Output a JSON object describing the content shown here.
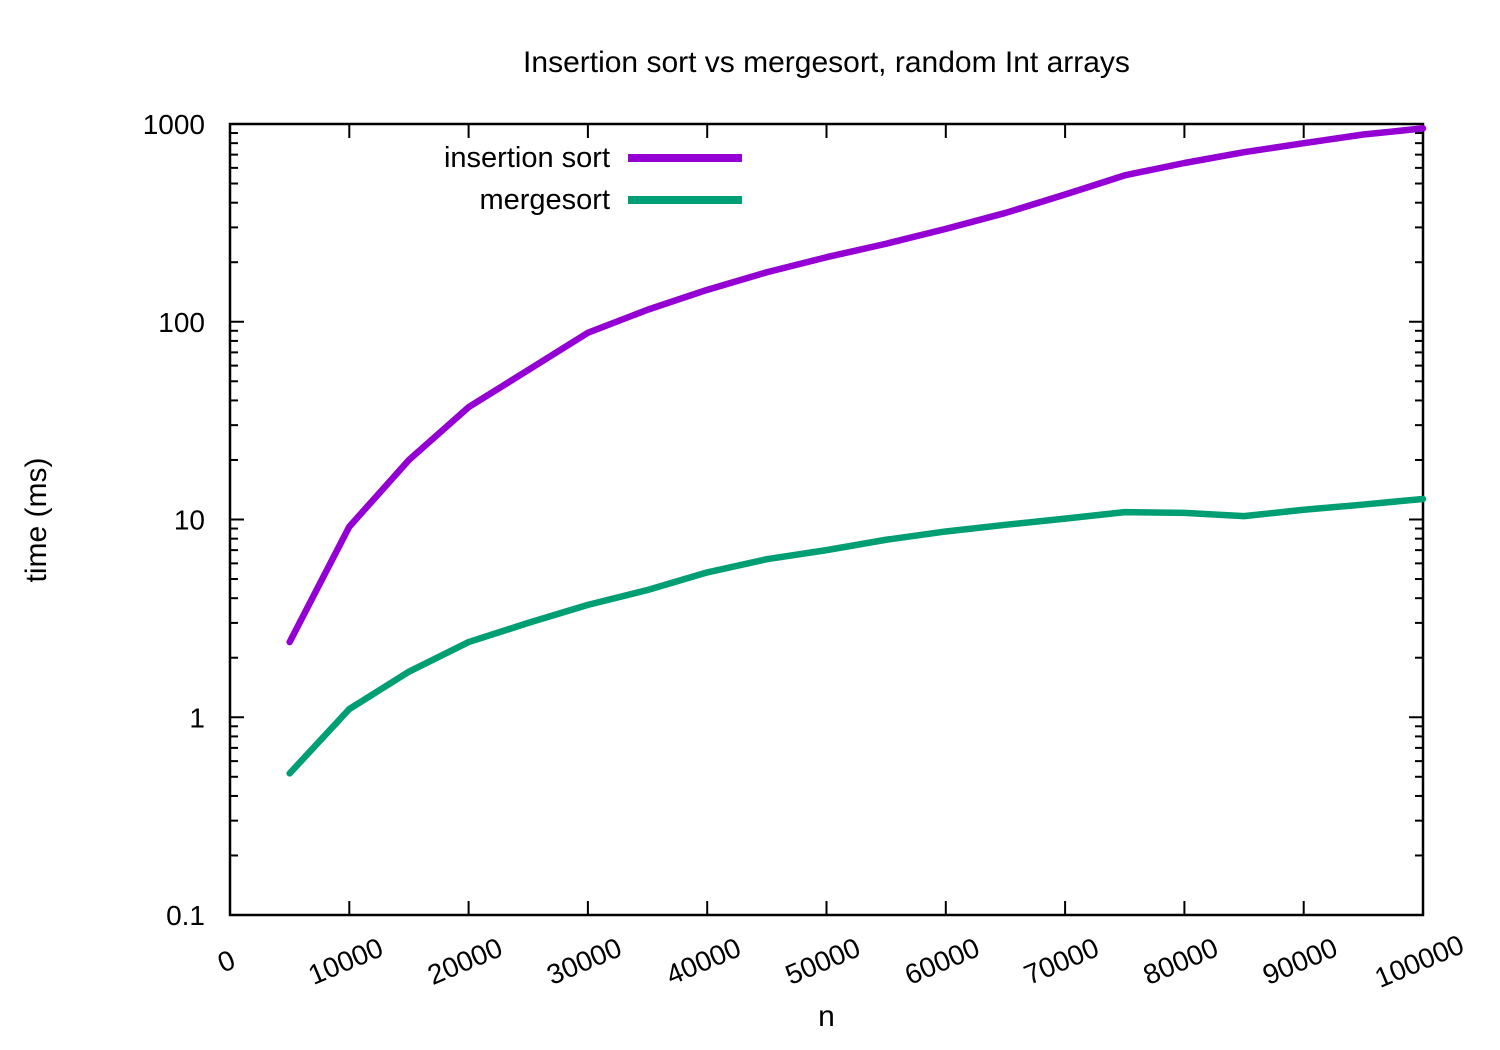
{
  "chart_data": {
    "type": "line",
    "title": "Insertion sort vs mergesort, random Int arrays",
    "xlabel": "n",
    "ylabel": "time (ms)",
    "x_scale": "linear",
    "y_scale": "log",
    "xlim": [
      0,
      100000
    ],
    "ylim": [
      0.1,
      1000
    ],
    "x_ticks": [
      0,
      10000,
      20000,
      30000,
      40000,
      50000,
      60000,
      70000,
      80000,
      90000,
      100000
    ],
    "y_ticks": [
      "0.1",
      "1",
      "10",
      "100",
      "1000"
    ],
    "grid": false,
    "legend_position": "inside-top-left",
    "axis_color": "#000000",
    "background_color": "#ffffff",
    "x": [
      5000,
      10000,
      15000,
      20000,
      25000,
      30000,
      35000,
      40000,
      45000,
      50000,
      55000,
      60000,
      65000,
      70000,
      75000,
      80000,
      85000,
      90000,
      95000,
      100000
    ],
    "series": [
      {
        "name": "insertion sort",
        "color": "#9400d3",
        "values": [
          2.4,
          9.2,
          20,
          37,
          57,
          88,
          115,
          145,
          178,
          212,
          248,
          295,
          355,
          440,
          550,
          635,
          720,
          800,
          885,
          950
        ]
      },
      {
        "name": "mergesort",
        "color": "#009e73",
        "values": [
          0.52,
          1.1,
          1.7,
          2.4,
          3.0,
          3.7,
          4.4,
          5.4,
          6.3,
          7.0,
          7.9,
          8.7,
          9.4,
          10.1,
          10.9,
          10.8,
          10.4,
          11.2,
          11.9,
          12.7
        ]
      }
    ]
  }
}
